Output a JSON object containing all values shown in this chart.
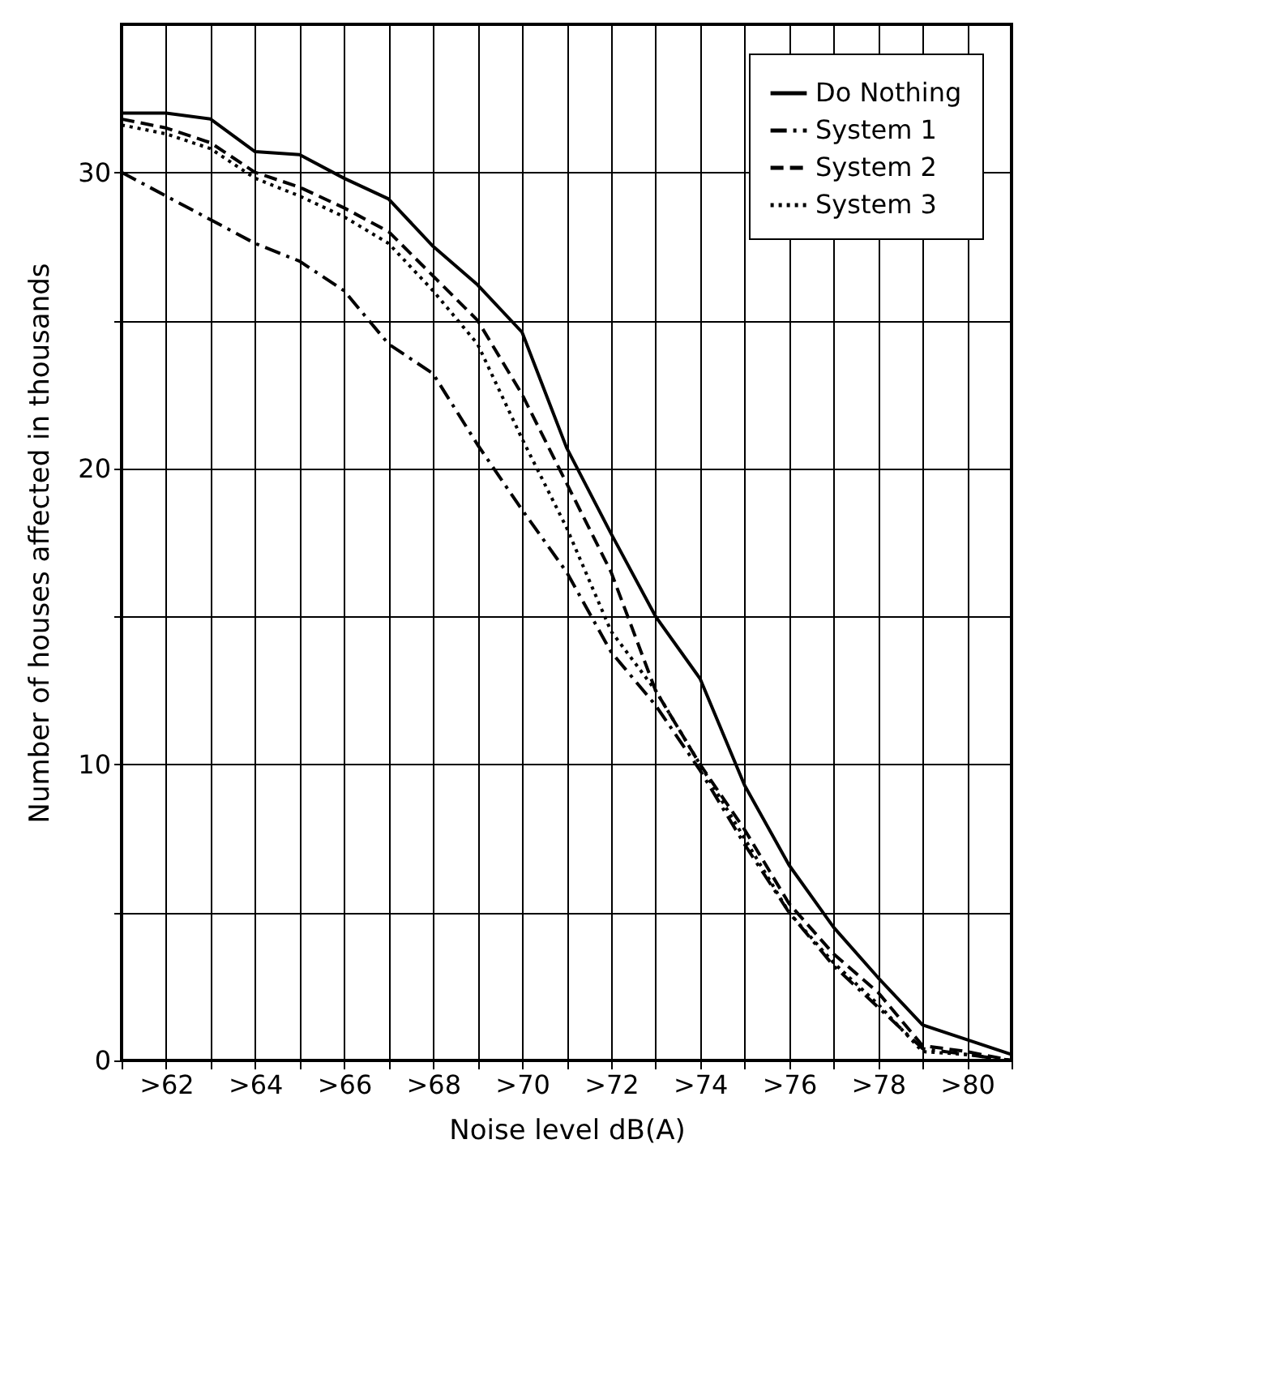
{
  "chart_data": {
    "type": "line",
    "xlabel": "Noise level dB(A)",
    "ylabel": "Number of houses affected in thousands",
    "categories": [
      null,
      ">62",
      null,
      ">64",
      null,
      ">66",
      null,
      ">68",
      null,
      ">70",
      null,
      ">72",
      null,
      ">74",
      null,
      ">76",
      null,
      ">78",
      null,
      ">80",
      null
    ],
    "ylim": [
      0,
      35
    ],
    "yticks": [
      0,
      {
        "value": 5,
        "label": null
      },
      10,
      {
        "value": 15,
        "label": null
      },
      20,
      {
        "value": 25,
        "label": null
      },
      30
    ],
    "grid": true,
    "legend": "top right",
    "marker": "none",
    "series": [
      {
        "name": "Do Nothing",
        "color": "#000000",
        "line_style": "solid",
        "values": [
          32,
          32,
          31.8,
          30.7,
          30.6,
          29.8,
          29.1,
          27.5,
          26.2,
          24.6,
          20.7,
          17.8,
          15,
          12.9,
          9.3,
          6.6,
          4.5,
          2.8,
          1.2,
          0.7,
          0.2
        ]
      },
      {
        "name": "System 1",
        "color": "#000000",
        "line_style": "dashdot",
        "values": [
          30,
          29.2,
          28.4,
          27.6,
          27,
          26,
          24.2,
          23.2,
          20.8,
          18.6,
          16.5,
          13.8,
          12,
          9.8,
          7.3,
          5,
          3.2,
          1.8,
          0.4,
          0.2,
          0
        ]
      },
      {
        "name": "System 2",
        "color": "#000000",
        "line_style": "dashed",
        "values": [
          31.8,
          31.5,
          31,
          30,
          29.5,
          28.8,
          28,
          26.5,
          25,
          22.5,
          19.5,
          16.5,
          12.5,
          10,
          7.8,
          5.3,
          3.6,
          2.3,
          0.5,
          0.3,
          0
        ]
      },
      {
        "name": "System 3",
        "color": "#000000",
        "line_style": "dotted",
        "values": [
          31.6,
          31.3,
          30.8,
          29.8,
          29.2,
          28.5,
          27.6,
          26,
          24.2,
          21,
          18,
          14.5,
          12.5,
          10,
          7.5,
          5,
          3.3,
          1.9,
          0.3,
          0.2,
          0
        ]
      }
    ]
  }
}
